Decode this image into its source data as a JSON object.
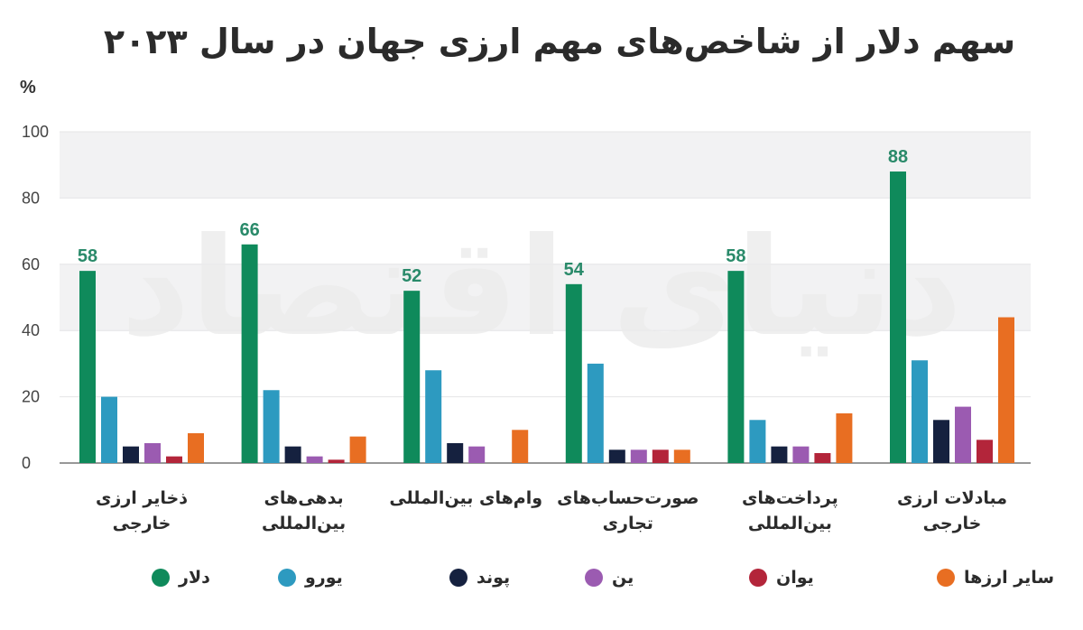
{
  "title": "سهم دلار از شاخص‌های مهم ارزی جهان در سال ۲۰۲۳",
  "unit_label": "%",
  "watermark": "دنیای اقتصاد",
  "chart_data": {
    "type": "bar",
    "ylim": [
      0,
      100
    ],
    "yticks": [
      "0",
      "20",
      "40",
      "60",
      "80",
      "100"
    ],
    "grid": "alternating-bands",
    "legend_position": "bottom",
    "categories": [
      "ذخایر ارزی\nخارجی",
      "بدهی‌های\nبین‌المللی",
      "وام‌های بین‌المللی",
      "صورت‌حساب‌های\nتجاری",
      "پرداخت‌های\nبین‌المللی",
      "مبادلات ارزی\nخارجی"
    ],
    "series": [
      {
        "name": "دلار",
        "color": "#0f8a5b",
        "values": [
          58,
          66,
          52,
          54,
          58,
          88
        ],
        "labels": [
          "58",
          "66",
          "52",
          "54",
          "58",
          "88"
        ]
      },
      {
        "name": "یورو",
        "color": "#2d9ac0",
        "values": [
          20,
          22,
          28,
          30,
          13,
          31
        ]
      },
      {
        "name": "پوند",
        "color": "#15213f",
        "values": [
          5,
          5,
          6,
          4,
          5,
          13
        ]
      },
      {
        "name": "ین",
        "color": "#9b5bb1",
        "values": [
          6,
          2,
          5,
          4,
          5,
          17
        ]
      },
      {
        "name": "یوان",
        "color": "#b3253a",
        "values": [
          2,
          1,
          0,
          4,
          3,
          7
        ]
      },
      {
        "name": "سایر ارزها",
        "color": "#e86e22",
        "values": [
          9,
          8,
          10,
          4,
          15,
          44
        ]
      }
    ]
  }
}
